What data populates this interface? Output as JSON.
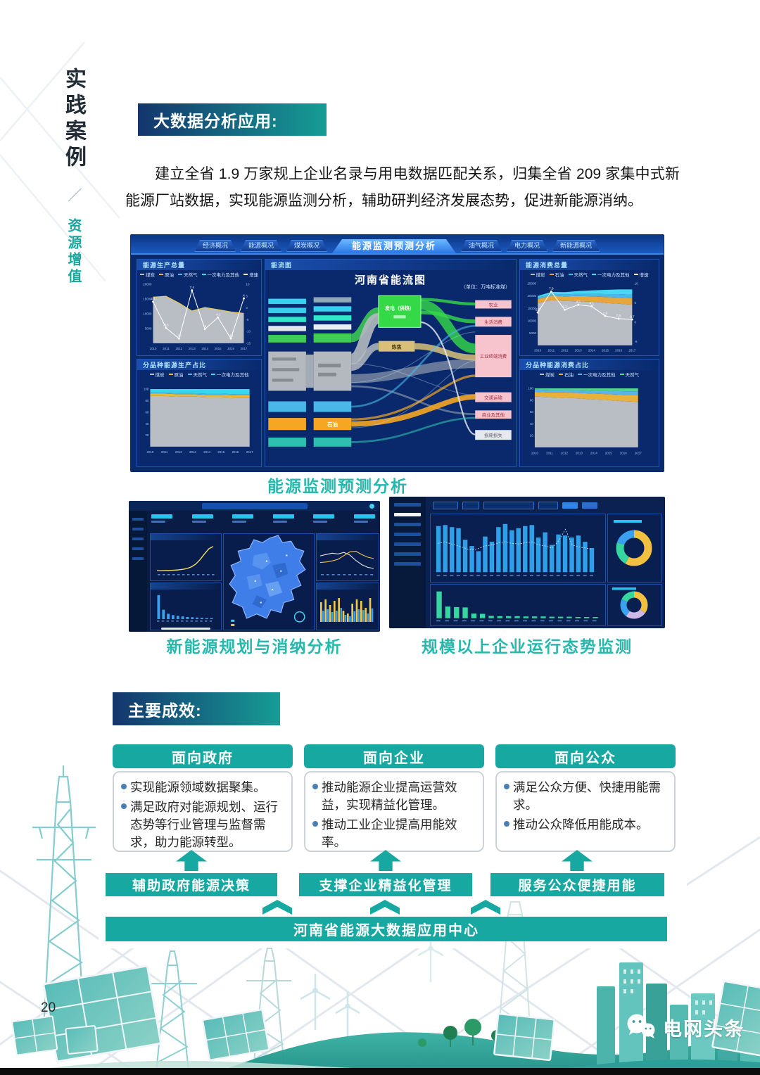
{
  "page": {
    "vertical_title": "实践案例",
    "vertical_divider": "／",
    "vertical_subtitle": "资源增值",
    "page_number": "20",
    "brand": "电网头条"
  },
  "intro": {
    "badge": "大数据分析应用:",
    "paragraph": "建立全省 1.9 万家规上企业名录与用电数据匹配关系，归集全省 209 家集中式新能源厂站数据，实现能源监测分析，辅助研判经济发展态势，促进新能源消纳。"
  },
  "dashboard": {
    "tabs_left": [
      "经济概况",
      "能源概况",
      "煤炭概况"
    ],
    "title": "能源监测预测分析",
    "tabs_right": [
      "油气概况",
      "电力概况",
      "新能源概况"
    ],
    "panels": {
      "production_total": "能源生产总量",
      "production_share": "分品种能源生产占比",
      "flow": "能流图",
      "consumption_total": "能源消费总量",
      "consumption_share": "分品种能源消费占比"
    },
    "sankey": {
      "title": "河南省能流图",
      "unit": "（单位：万吨标准煤）",
      "mid_nodes": [
        "发电（供热）",
        "炼焦"
      ],
      "left_nodes": [
        "石油"
      ],
      "right_nodes": [
        "农业",
        "生活消费",
        "工业终端消费",
        "交通运输",
        "商业及其他",
        "损耗损失"
      ]
    }
  },
  "captions": {
    "main": "能源监测预测分析",
    "left": "新能源规划与消纳分析",
    "right": "规模以上企业运行态势监测"
  },
  "achievements": {
    "badge": "主要成效:",
    "cards": [
      {
        "title": "面向政府",
        "bullets": [
          "实现能源领域数据聚集。",
          "满足政府对能源规划、运行态势等行业管理与监督需求，助力能源转型。"
        ]
      },
      {
        "title": "面向企业",
        "bullets": [
          "推动能源企业提高运营效益，实现精益化管理。",
          "推动工业企业提高用能效率。"
        ]
      },
      {
        "title": "面向公众",
        "bullets": [
          "满足公众方便、快捷用能需求。",
          "推动公众降低用能成本。"
        ]
      }
    ],
    "pillars": [
      "辅助政府能源决策",
      "支撑企业精益化管理",
      "服务公众便捷用能"
    ],
    "foundation": "河南省能源大数据应用中心"
  },
  "colors": {
    "accent_teal": "#17a9a1",
    "caption_teal": "#26b8ac",
    "badge_start": "#14356d",
    "badge_end": "#169d95",
    "dashboard_bg": "#0a2b6b"
  },
  "chart_data": [
    {
      "id": "production_total",
      "type": "area+line",
      "title": "能源生产总量",
      "categories": [
        "2010",
        "2011",
        "2012",
        "2013",
        "2014",
        "2015",
        "2016",
        "2017"
      ],
      "ylabel_left": "万吨标准煤",
      "ylabel_right": "%",
      "ylim_left": [
        0,
        20000
      ],
      "ylim_right": [
        -15,
        10
      ],
      "series": [
        {
          "name": "能源生产总量",
          "kind": "area",
          "color": "#b9bec4",
          "values": [
            15600,
            15900,
            13600,
            10900,
            12100,
            11400,
            10600,
            10100
          ]
        },
        {
          "name": "增速",
          "kind": "line",
          "color": "#ffffff",
          "values": [
            2.6,
            -8.5,
            -13,
            7.4,
            -9,
            -4.1,
            -13,
            4
          ]
        }
      ],
      "legend": [
        "煤炭",
        "原油",
        "天然气",
        "一次电力及其他",
        "增速"
      ],
      "legend_colors": [
        "#b9bec4",
        "#e8b83a",
        "#49b7e8",
        "#39d6f0",
        "#ffffff"
      ]
    },
    {
      "id": "production_share",
      "type": "stacked-area",
      "title": "分品种能源生产占比",
      "categories": [
        "2010",
        "2011",
        "2012",
        "2013",
        "2014",
        "2015",
        "2016",
        "2017"
      ],
      "ylim": [
        0,
        100
      ],
      "series": [
        {
          "name": "煤炭",
          "color": "#b9bec4",
          "values": [
            88,
            88,
            87,
            87,
            86,
            86,
            85,
            85
          ]
        },
        {
          "name": "原油",
          "color": "#e8b83a",
          "values": [
            4,
            4,
            4,
            4,
            4,
            4,
            4,
            4
          ]
        },
        {
          "name": "天然气",
          "color": "#49b7e8",
          "values": [
            2,
            2,
            2,
            2,
            2,
            2,
            2,
            2
          ]
        },
        {
          "name": "一次电力及其他",
          "color": "#39d6f0",
          "values": [
            6,
            6,
            7,
            7,
            8,
            8,
            9,
            9
          ]
        }
      ],
      "legend": [
        "煤炭",
        "原油",
        "天然气",
        "一次电力及其他"
      ],
      "legend_colors": [
        "#b9bec4",
        "#e8b83a",
        "#49b7e8",
        "#39d6f0"
      ]
    },
    {
      "id": "consumption_total",
      "type": "stacked-area+line",
      "title": "能源消费总量",
      "categories": [
        "2010",
        "2011",
        "2012",
        "2013",
        "2014",
        "2015",
        "2016",
        "2017"
      ],
      "ylim_left": [
        0,
        25000
      ],
      "ylim_right": [
        -6,
        10
      ],
      "series": [
        {
          "name": "煤炭",
          "color": "#b9bec4",
          "values": [
            17000,
            18300,
            17900,
            17800,
            17600,
            17100,
            16800,
            16400
          ]
        },
        {
          "name": "石油",
          "color": "#e8a53a",
          "values": [
            1600,
            1800,
            1900,
            2100,
            2200,
            2400,
            2500,
            2600
          ]
        },
        {
          "name": "天然气",
          "color": "#49b7e8",
          "values": [
            600,
            700,
            800,
            900,
            1000,
            1200,
            1400,
            1500
          ]
        },
        {
          "name": "一次电力及其他",
          "color": "#45d8f0",
          "values": [
            700,
            800,
            900,
            1100,
            1400,
            1700,
            1900,
            2100
          ]
        },
        {
          "name": "增速",
          "kind": "line",
          "color": "#ffffff",
          "values": [
            2.5,
            7.9,
            3.2,
            4.5,
            4.1,
            1.6,
            0.9,
            0.7
          ]
        }
      ],
      "legend": [
        "煤炭",
        "石油",
        "天然气",
        "一次电力及其他",
        "增速"
      ],
      "legend_colors": [
        "#b9bec4",
        "#e8a53a",
        "#49b7e8",
        "#45d8f0",
        "#ffffff"
      ]
    },
    {
      "id": "consumption_share",
      "type": "stacked-area",
      "title": "分品种能源消费占比",
      "categories": [
        "2010",
        "2011",
        "2012",
        "2013",
        "2014",
        "2015",
        "2016",
        "2017"
      ],
      "ylim": [
        0,
        100
      ],
      "series": [
        {
          "name": "煤炭",
          "color": "#b9bec4",
          "values": [
            86,
            85,
            84,
            83,
            81,
            80,
            78,
            77
          ]
        },
        {
          "name": "石油",
          "color": "#e8b13a",
          "values": [
            8,
            8,
            9,
            9,
            10,
            10,
            11,
            12
          ]
        },
        {
          "name": "一次电力及其他",
          "color": "#5ab4e8",
          "values": [
            4,
            4,
            4,
            5,
            5,
            6,
            6,
            6
          ]
        },
        {
          "name": "天然气",
          "color": "#52d68a",
          "values": [
            2,
            3,
            3,
            3,
            4,
            4,
            5,
            5
          ]
        }
      ],
      "legend": [
        "煤炭",
        "石油",
        "一次电力及其他",
        "天然气"
      ],
      "legend_colors": [
        "#b9bec4",
        "#e8b13a",
        "#5ab4e8",
        "#52d68a"
      ]
    },
    {
      "id": "enterprise_electricity_bars",
      "type": "bar+line",
      "color": "#2e9fe8",
      "values": [
        88,
        90,
        86,
        84,
        62,
        50,
        40,
        68,
        58,
        86,
        92,
        80,
        84,
        88,
        90,
        66,
        76,
        52,
        72,
        70,
        66,
        70,
        58,
        46
      ],
      "line": [
        55,
        58,
        54,
        50,
        46,
        42,
        45,
        50,
        52,
        56,
        58,
        55,
        54,
        56,
        58,
        52,
        50,
        46,
        60,
        82,
        52,
        48,
        46,
        44
      ]
    },
    {
      "id": "enterprise_rank_bars",
      "type": "bar",
      "color": "#35d6a0",
      "values": [
        92,
        40,
        38,
        37,
        16,
        15,
        8,
        7,
        7,
        7,
        6,
        6,
        6,
        5,
        5,
        5,
        4,
        4,
        4
      ]
    },
    {
      "id": "donut_top",
      "type": "pie",
      "values": [
        58,
        22,
        20
      ],
      "colors": [
        "#f2c23e",
        "#35d6a0",
        "#3aa0f0"
      ]
    },
    {
      "id": "donut_bottom",
      "type": "pie",
      "values": [
        35,
        25,
        22,
        18
      ],
      "colors": [
        "#f2c23e",
        "#cdb9e8",
        "#3aa0f0",
        "#35d6a0"
      ]
    },
    {
      "id": "newenergy_growth_line",
      "type": "line",
      "color": "#f0e060",
      "values": [
        2,
        2,
        3,
        3,
        4,
        5,
        7,
        10,
        16,
        26,
        42,
        62,
        80,
        88
      ]
    },
    {
      "id": "newenergy_rank_bars",
      "type": "bar",
      "color": "#3aa0f0",
      "values": [
        90,
        35,
        20,
        15,
        12,
        10,
        8,
        7,
        6,
        5,
        4,
        4
      ]
    },
    {
      "id": "newenergy_dual_lines",
      "type": "line",
      "series": [
        {
          "color": "#e8e8e8",
          "values": [
            55,
            60,
            65,
            62,
            68,
            58,
            38,
            22,
            12,
            8
          ]
        },
        {
          "color": "#f0c84a",
          "values": [
            30,
            32,
            36,
            42,
            56,
            70,
            72,
            60,
            50,
            45
          ]
        }
      ]
    },
    {
      "id": "newenergy_yb_bars",
      "type": "bar-multi",
      "series": [
        {
          "color": "#f0c84a",
          "values": [
            70,
            80,
            60,
            75,
            85,
            40,
            30,
            65,
            80,
            75,
            50,
            85
          ]
        },
        {
          "color": "#3aa0f0",
          "values": [
            40,
            45,
            35,
            40,
            50,
            25,
            20,
            38,
            45,
            42,
            30,
            48
          ]
        }
      ]
    }
  ]
}
